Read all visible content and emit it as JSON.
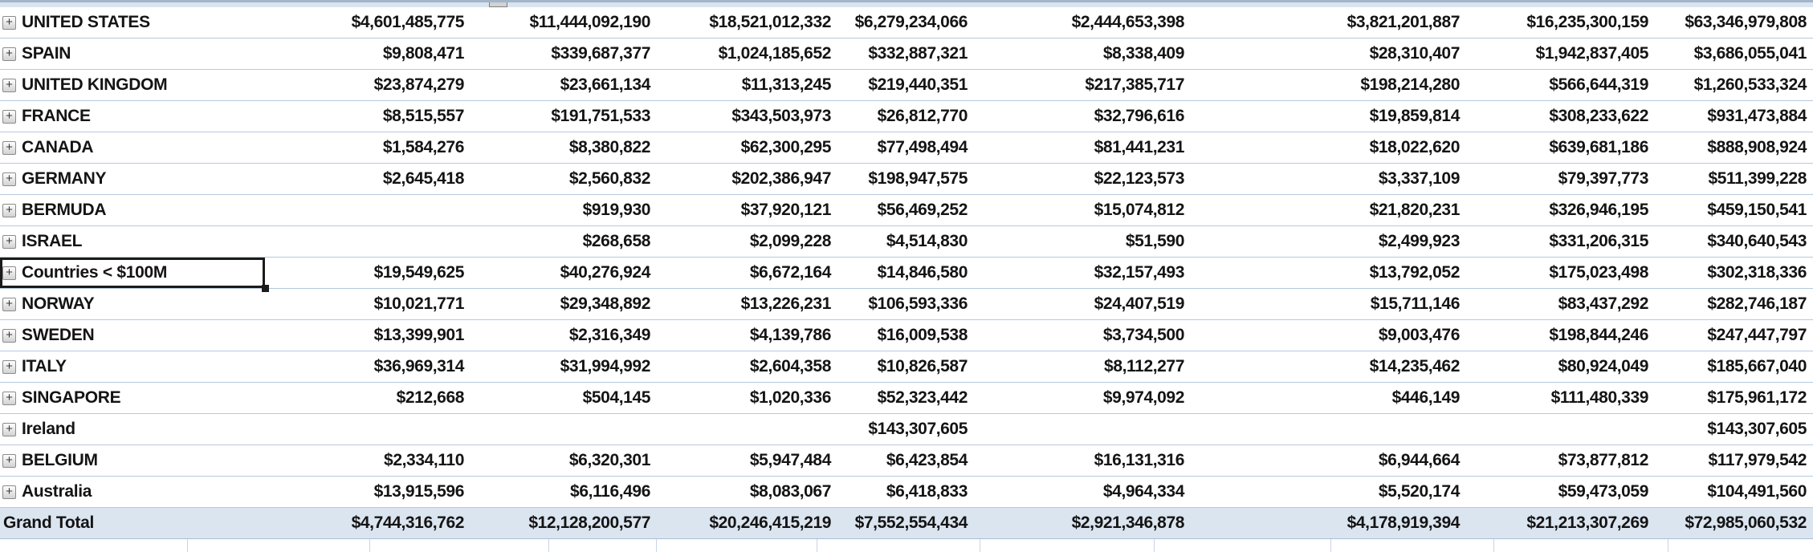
{
  "table": {
    "expand_icon": "+",
    "rows": [
      {
        "label": "UNITED STATES",
        "values": [
          "$4,601,485,775",
          "$11,444,092,190",
          "$18,521,012,332",
          "$6,279,234,066",
          "$2,444,653,398",
          "$3,821,201,887",
          "$16,235,300,159",
          "$63,346,979,808"
        ]
      },
      {
        "label": "SPAIN",
        "values": [
          "$9,808,471",
          "$339,687,377",
          "$1,024,185,652",
          "$332,887,321",
          "$8,338,409",
          "$28,310,407",
          "$1,942,837,405",
          "$3,686,055,041"
        ]
      },
      {
        "label": "UNITED KINGDOM",
        "values": [
          "$23,874,279",
          "$23,661,134",
          "$11,313,245",
          "$219,440,351",
          "$217,385,717",
          "$198,214,280",
          "$566,644,319",
          "$1,260,533,324"
        ]
      },
      {
        "label": "FRANCE",
        "values": [
          "$8,515,557",
          "$191,751,533",
          "$343,503,973",
          "$26,812,770",
          "$32,796,616",
          "$19,859,814",
          "$308,233,622",
          "$931,473,884"
        ]
      },
      {
        "label": "CANADA",
        "values": [
          "$1,584,276",
          "$8,380,822",
          "$62,300,295",
          "$77,498,494",
          "$81,441,231",
          "$18,022,620",
          "$639,681,186",
          "$888,908,924"
        ]
      },
      {
        "label": "GERMANY",
        "values": [
          "$2,645,418",
          "$2,560,832",
          "$202,386,947",
          "$198,947,575",
          "$22,123,573",
          "$3,337,109",
          "$79,397,773",
          "$511,399,228"
        ]
      },
      {
        "label": "BERMUDA",
        "values": [
          "",
          "$919,930",
          "$37,920,121",
          "$56,469,252",
          "$15,074,812",
          "$21,820,231",
          "$326,946,195",
          "$459,150,541"
        ]
      },
      {
        "label": "ISRAEL",
        "values": [
          "",
          "$268,658",
          "$2,099,228",
          "$4,514,830",
          "$51,590",
          "$2,499,923",
          "$331,206,315",
          "$340,640,543"
        ]
      },
      {
        "label": "Countries < $100M",
        "selected": true,
        "values": [
          "$19,549,625",
          "$40,276,924",
          "$6,672,164",
          "$14,846,580",
          "$32,157,493",
          "$13,792,052",
          "$175,023,498",
          "$302,318,336"
        ]
      },
      {
        "label": "NORWAY",
        "values": [
          "$10,021,771",
          "$29,348,892",
          "$13,226,231",
          "$106,593,336",
          "$24,407,519",
          "$15,711,146",
          "$83,437,292",
          "$282,746,187"
        ]
      },
      {
        "label": "SWEDEN",
        "values": [
          "$13,399,901",
          "$2,316,349",
          "$4,139,786",
          "$16,009,538",
          "$3,734,500",
          "$9,003,476",
          "$198,844,246",
          "$247,447,797"
        ]
      },
      {
        "label": "ITALY",
        "values": [
          "$36,969,314",
          "$31,994,992",
          "$2,604,358",
          "$10,826,587",
          "$8,112,277",
          "$14,235,462",
          "$80,924,049",
          "$185,667,040"
        ]
      },
      {
        "label": "SINGAPORE",
        "values": [
          "$212,668",
          "$504,145",
          "$1,020,336",
          "$52,323,442",
          "$9,974,092",
          "$446,149",
          "$111,480,339",
          "$175,961,172"
        ]
      },
      {
        "label": "Ireland",
        "values": [
          "",
          "",
          "",
          "$143,307,605",
          "",
          "",
          "",
          "$143,307,605"
        ]
      },
      {
        "label": "BELGIUM",
        "values": [
          "$2,334,110",
          "$6,320,301",
          "$5,947,484",
          "$6,423,854",
          "$16,131,316",
          "$6,944,664",
          "$73,877,812",
          "$117,979,542"
        ]
      },
      {
        "label": "Australia",
        "values": [
          "$13,915,596",
          "$6,116,496",
          "$8,083,067",
          "$6,418,833",
          "$4,964,334",
          "$5,520,174",
          "$59,473,059",
          "$104,491,560"
        ]
      }
    ],
    "grand_total": {
      "label": "Grand Total",
      "values": [
        "$4,744,316,762",
        "$12,128,200,577",
        "$20,246,415,219",
        "$7,552,554,434",
        "$2,921,346,878",
        "$4,178,919,394",
        "$21,213,307,269",
        "$72,985,060,532"
      ]
    }
  },
  "colors": {
    "row_separator": "#b7c9de",
    "grand_total_band": "#dbe5f0",
    "selection_border": "#1b1b1b",
    "top_strip_line": "#a3b5c9",
    "top_strip_fill": "#d9e4f1",
    "text": "#141414"
  }
}
